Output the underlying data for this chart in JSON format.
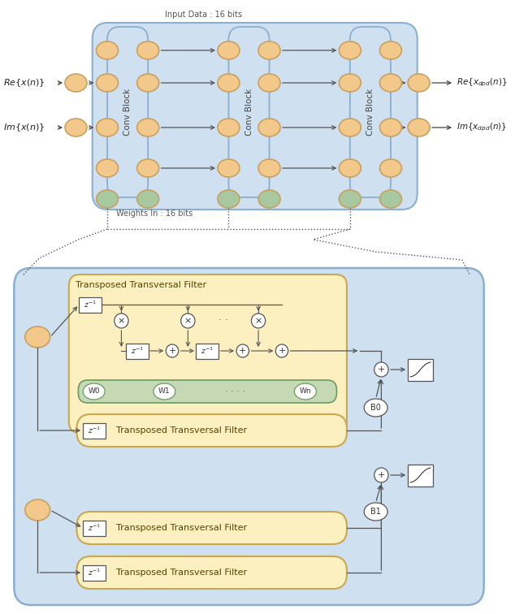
{
  "fig_width": 6.34,
  "fig_height": 7.56,
  "bg_color": "#ffffff",
  "node_color_orange": "#f2c98a",
  "node_color_green": "#a8c8a0",
  "block_bg_blue": "#cfe0f0",
  "block_bg_yellow": "#fdf0c0",
  "block_bg_green_strip": "#c5d9b5",
  "edge_blue": "#8aafd0",
  "edge_yellow": "#c8a850",
  "edge_green": "#6a9a60",
  "edge_node": "#c8a060",
  "text_dark": "#333333",
  "text_gray": "#666666",
  "input_data_label": "Input Data : 16 bits",
  "weights_label": "Weights In : 16 bits",
  "conv_block_label": "Conv Block",
  "ttf_label": "Transposed Transversal Filter",
  "b0_label": "B0",
  "b1_label": "B1",
  "w0_label": "W0",
  "w1_label": "W1",
  "wn_label": "Wn"
}
